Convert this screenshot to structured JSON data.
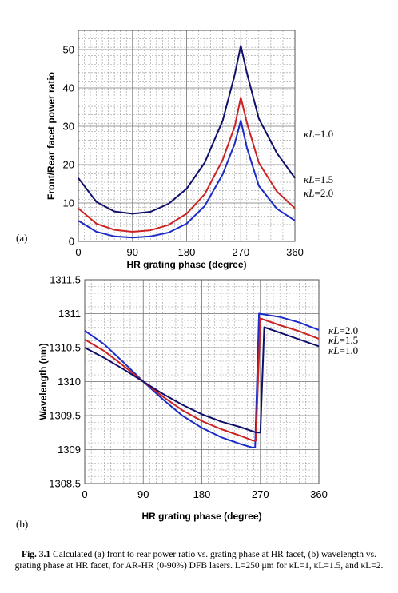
{
  "chart_data": [
    {
      "type": "line",
      "panel_label": "(a)",
      "xlabel": "HR grating phase (degree)",
      "ylabel": "Front/Rear facet power ratio",
      "xlim": [
        0,
        360
      ],
      "ylim": [
        0,
        55
      ],
      "xticks": [
        "0",
        "90",
        "180",
        "270",
        "360"
      ],
      "yticks": [
        "0",
        "10",
        "20",
        "30",
        "40",
        "50"
      ],
      "grid": true,
      "x": [
        0,
        30,
        60,
        90,
        120,
        150,
        180,
        210,
        240,
        260,
        270,
        280,
        300,
        330,
        360
      ],
      "series": [
        {
          "name": "κL=1.0",
          "color": "#10106b",
          "values": [
            16.5,
            10.3,
            7.8,
            7.2,
            7.7,
            9.8,
            13.7,
            20.5,
            31.5,
            43.5,
            51.0,
            44.0,
            32.0,
            23.0,
            16.5
          ]
        },
        {
          "name": "κL=1.5",
          "color": "#cc2222",
          "values": [
            8.6,
            4.6,
            3.0,
            2.5,
            2.9,
            4.3,
            7.2,
            12.3,
            21.3,
            30.0,
            37.5,
            31.0,
            20.5,
            13.0,
            8.6
          ]
        },
        {
          "name": "κL=2.0",
          "color": "#1a2bc8",
          "values": [
            5.4,
            2.5,
            1.3,
            1.0,
            1.3,
            2.3,
            4.6,
            9.2,
            17.5,
            25.5,
            31.5,
            24.5,
            14.5,
            8.5,
            5.4
          ]
        }
      ],
      "legend_order": [
        "κL=1.0",
        "κL=1.5",
        "κL=2.0"
      ]
    },
    {
      "type": "line",
      "panel_label": "(b)",
      "xlabel": "HR grating phase (degree)",
      "ylabel": "Wavelength (nm)",
      "xlim": [
        0,
        360
      ],
      "ylim": [
        1308.5,
        1311.5
      ],
      "xticks": [
        "0",
        "90",
        "180",
        "270",
        "360"
      ],
      "yticks": [
        "1308.5",
        "1309",
        "1309.5",
        "1310",
        "1310.5",
        "1311",
        "1311.5"
      ],
      "grid": true,
      "series": [
        {
          "name": "κL=2.0",
          "color": "#1a2bc8",
          "x": [
            0,
            30,
            60,
            90,
            120,
            150,
            180,
            210,
            240,
            258,
            262,
            268,
            300,
            330,
            360
          ],
          "values": [
            1310.75,
            1310.55,
            1310.28,
            1310.0,
            1309.74,
            1309.5,
            1309.32,
            1309.18,
            1309.08,
            1309.03,
            1309.03,
            1311.0,
            1310.95,
            1310.87,
            1310.76
          ]
        },
        {
          "name": "κL=1.5",
          "color": "#cc2222",
          "x": [
            0,
            30,
            60,
            90,
            120,
            150,
            180,
            210,
            240,
            259,
            263,
            270,
            300,
            330,
            360
          ],
          "values": [
            1310.62,
            1310.45,
            1310.23,
            1310.0,
            1309.78,
            1309.58,
            1309.42,
            1309.3,
            1309.2,
            1309.13,
            1309.13,
            1310.93,
            1310.83,
            1310.74,
            1310.63
          ]
        },
        {
          "name": "κL=1.0",
          "color": "#10106b",
          "x": [
            0,
            30,
            60,
            90,
            120,
            150,
            180,
            210,
            240,
            264,
            270,
            276,
            300,
            330,
            360
          ],
          "values": [
            1310.5,
            1310.35,
            1310.18,
            1310.0,
            1309.82,
            1309.66,
            1309.52,
            1309.41,
            1309.33,
            1309.25,
            1309.25,
            1310.8,
            1310.72,
            1310.62,
            1310.52
          ]
        }
      ],
      "legend_order": [
        "κL=2.0",
        "κL=1.5",
        "κL=1.0"
      ]
    }
  ],
  "caption": {
    "label": "Fig. 3.1",
    "text": " Calculated (a) front to rear power ratio vs. grating phase at HR facet, (b) wavelength vs. grating phase at HR facet, for AR-HR (0-90%) DFB lasers. L=250 μm for κL=1, κL=1.5, and κL=2."
  }
}
